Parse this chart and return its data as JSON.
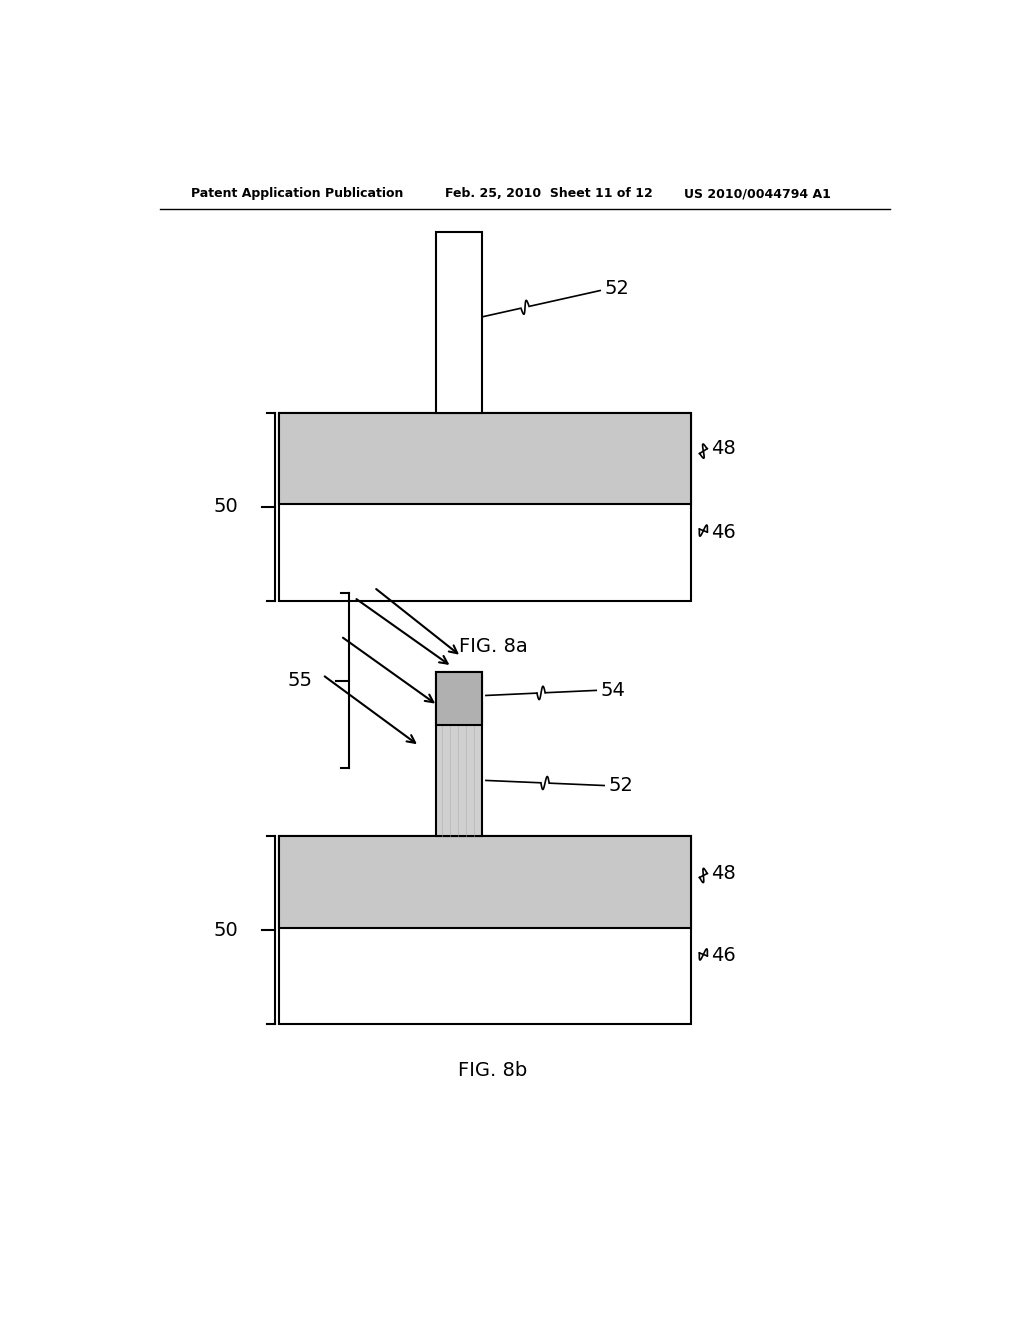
{
  "bg_color": "#ffffff",
  "header_left": "Patent Application Publication",
  "header_mid": "Feb. 25, 2010  Sheet 11 of 12",
  "header_right": "US 2010/0044794 A1",
  "fig8a_caption": "FIG. 8a",
  "fig8b_caption": "FIG. 8b",
  "layer_color": "#c8c8c8",
  "substrate_color": "#ffffff",
  "fin_color": "#ffffff",
  "hardmask_color": "#b0b0b0",
  "implant_fin_color": "#d0d0d0"
}
